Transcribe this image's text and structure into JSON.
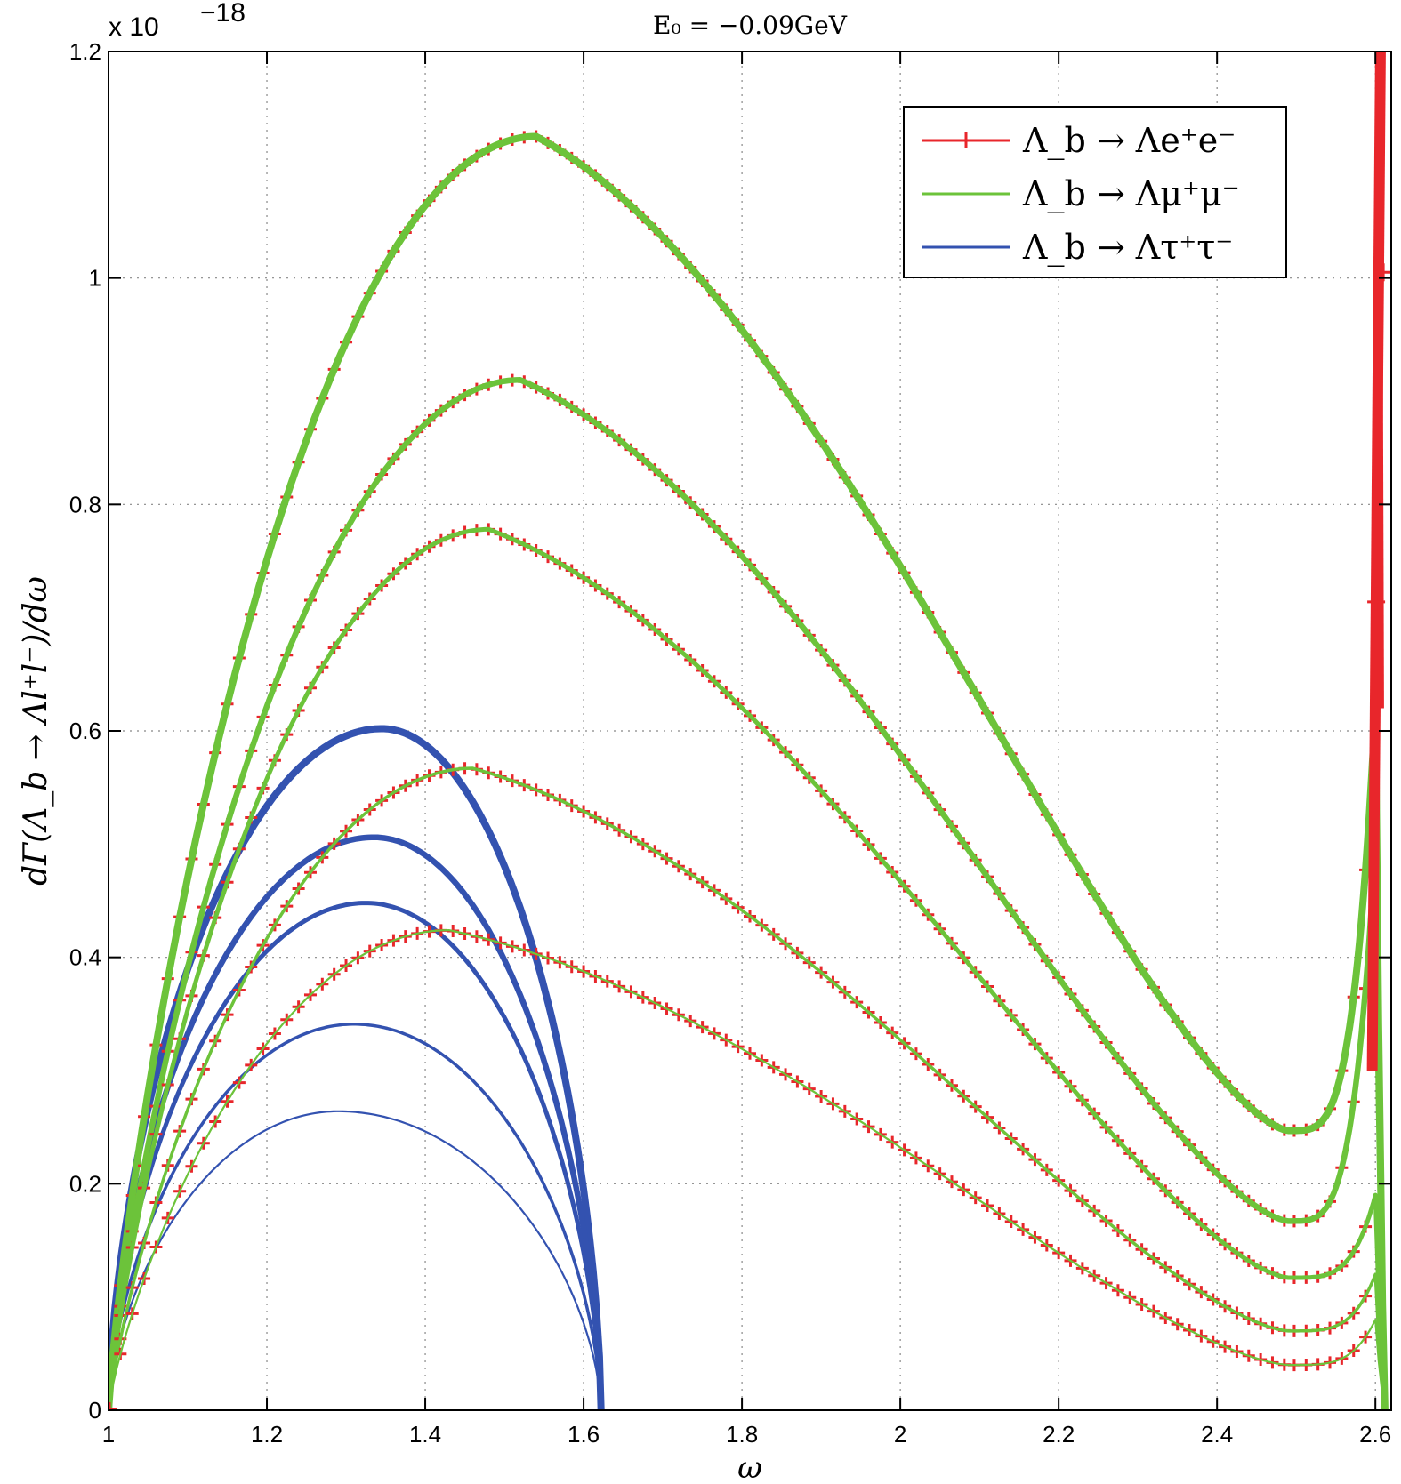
{
  "chart_data": {
    "type": "line",
    "title": "E₀ = −0.09GeV",
    "xlabel": "ω",
    "ylabel": "dΓ(Λ_b → Λl⁺l⁻)/dω",
    "y_multiplier": "x 10",
    "y_multiplier_exp": "−18",
    "xlim": [
      1,
      2.62
    ],
    "ylim": [
      0,
      1.2
    ],
    "x_ticks": [
      1,
      1.2,
      1.4,
      1.6,
      1.8,
      2,
      2.2,
      2.4,
      2.6
    ],
    "x_tick_labels": [
      "1",
      "1.2",
      "1.4",
      "1.6",
      "1.8",
      "2",
      "2.2",
      "2.4",
      "2.6"
    ],
    "y_ticks": [
      0,
      0.2,
      0.4,
      0.6,
      0.8,
      1,
      1.2
    ],
    "y_tick_labels": [
      "0",
      "0.2",
      "0.4",
      "0.6",
      "0.8",
      "1",
      "1.2"
    ],
    "grid": true,
    "legend_position": "top-right",
    "colors": {
      "electron": "#e8262b",
      "muon": "#6cc33a",
      "tau": "#3352b0"
    },
    "legend": [
      {
        "name": "Λ_b → Λe⁺e⁻",
        "color": "#e8262b",
        "marker": "+"
      },
      {
        "name": "Λ_b → Λμ⁺μ⁻",
        "color": "#6cc33a",
        "marker": ""
      },
      {
        "name": "Λ_b → Λτ⁺τ⁻",
        "color": "#3352b0",
        "marker": ""
      }
    ],
    "light_lepton_curves": [
      {
        "peak": [
          1.54,
          1.125
        ],
        "min": [
          2.49,
          0.247
        ],
        "spike": [
          2.6,
          0.62
        ]
      },
      {
        "peak": [
          1.52,
          0.91
        ],
        "min": [
          2.49,
          0.167
        ],
        "spike": [
          2.6,
          0.5
        ]
      },
      {
        "peak": [
          1.48,
          0.778
        ],
        "min": [
          2.49,
          0.117
        ],
        "spike": [
          2.6,
          0.19
        ]
      },
      {
        "peak": [
          1.46,
          0.567
        ],
        "min": [
          2.49,
          0.07
        ],
        "spike": [
          2.6,
          0.12
        ]
      },
      {
        "peak": [
          1.43,
          0.424
        ],
        "min": [
          2.49,
          0.04
        ],
        "spike": [
          2.6,
          0.08
        ]
      }
    ],
    "tau_curves": [
      {
        "peak": [
          1.345,
          0.602
        ],
        "end": 1.622
      },
      {
        "peak": [
          1.335,
          0.506
        ],
        "end": 1.622
      },
      {
        "peak": [
          1.325,
          0.448
        ],
        "end": 1.622
      },
      {
        "peak": [
          1.31,
          0.341
        ],
        "end": 1.622
      },
      {
        "peak": [
          1.29,
          0.264
        ],
        "end": 1.622
      }
    ],
    "electron_edge_values": [
      {
        "x": 2.601,
        "y": 0.714
      },
      {
        "x": 2.61,
        "y": 1.005
      }
    ]
  }
}
